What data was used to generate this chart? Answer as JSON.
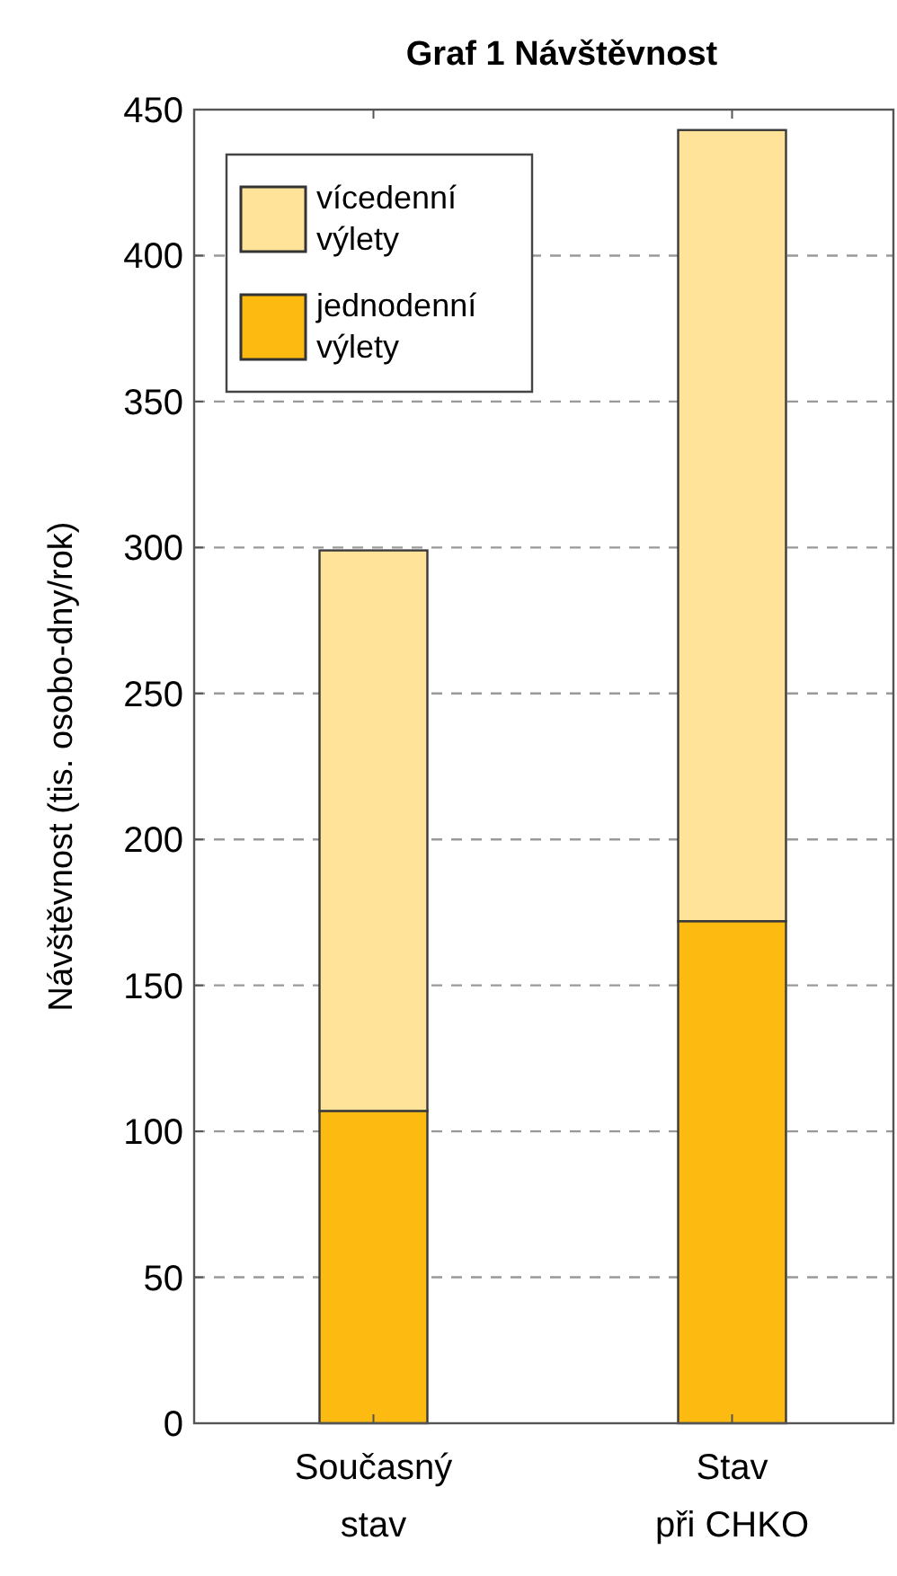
{
  "chart_data": {
    "type": "bar",
    "title": "Graf 1 Návštěvnost",
    "ylabel": "Návštěvnost  (tis. osobo-dny/rok)",
    "categories": [
      "Současný stav",
      "Stav při CHKO"
    ],
    "series": [
      {
        "name": "jednodenní výlety",
        "color": "#fdbb12",
        "values": [
          107,
          172
        ]
      },
      {
        "name": "vícedenní výlety",
        "color": "#fee399",
        "values": [
          192,
          271
        ]
      }
    ],
    "stacked": true,
    "ylim": [
      0,
      450
    ],
    "yticks": [
      0,
      50,
      100,
      150,
      200,
      250,
      300,
      350,
      400,
      450
    ],
    "grid": "y",
    "legend": "top left"
  }
}
